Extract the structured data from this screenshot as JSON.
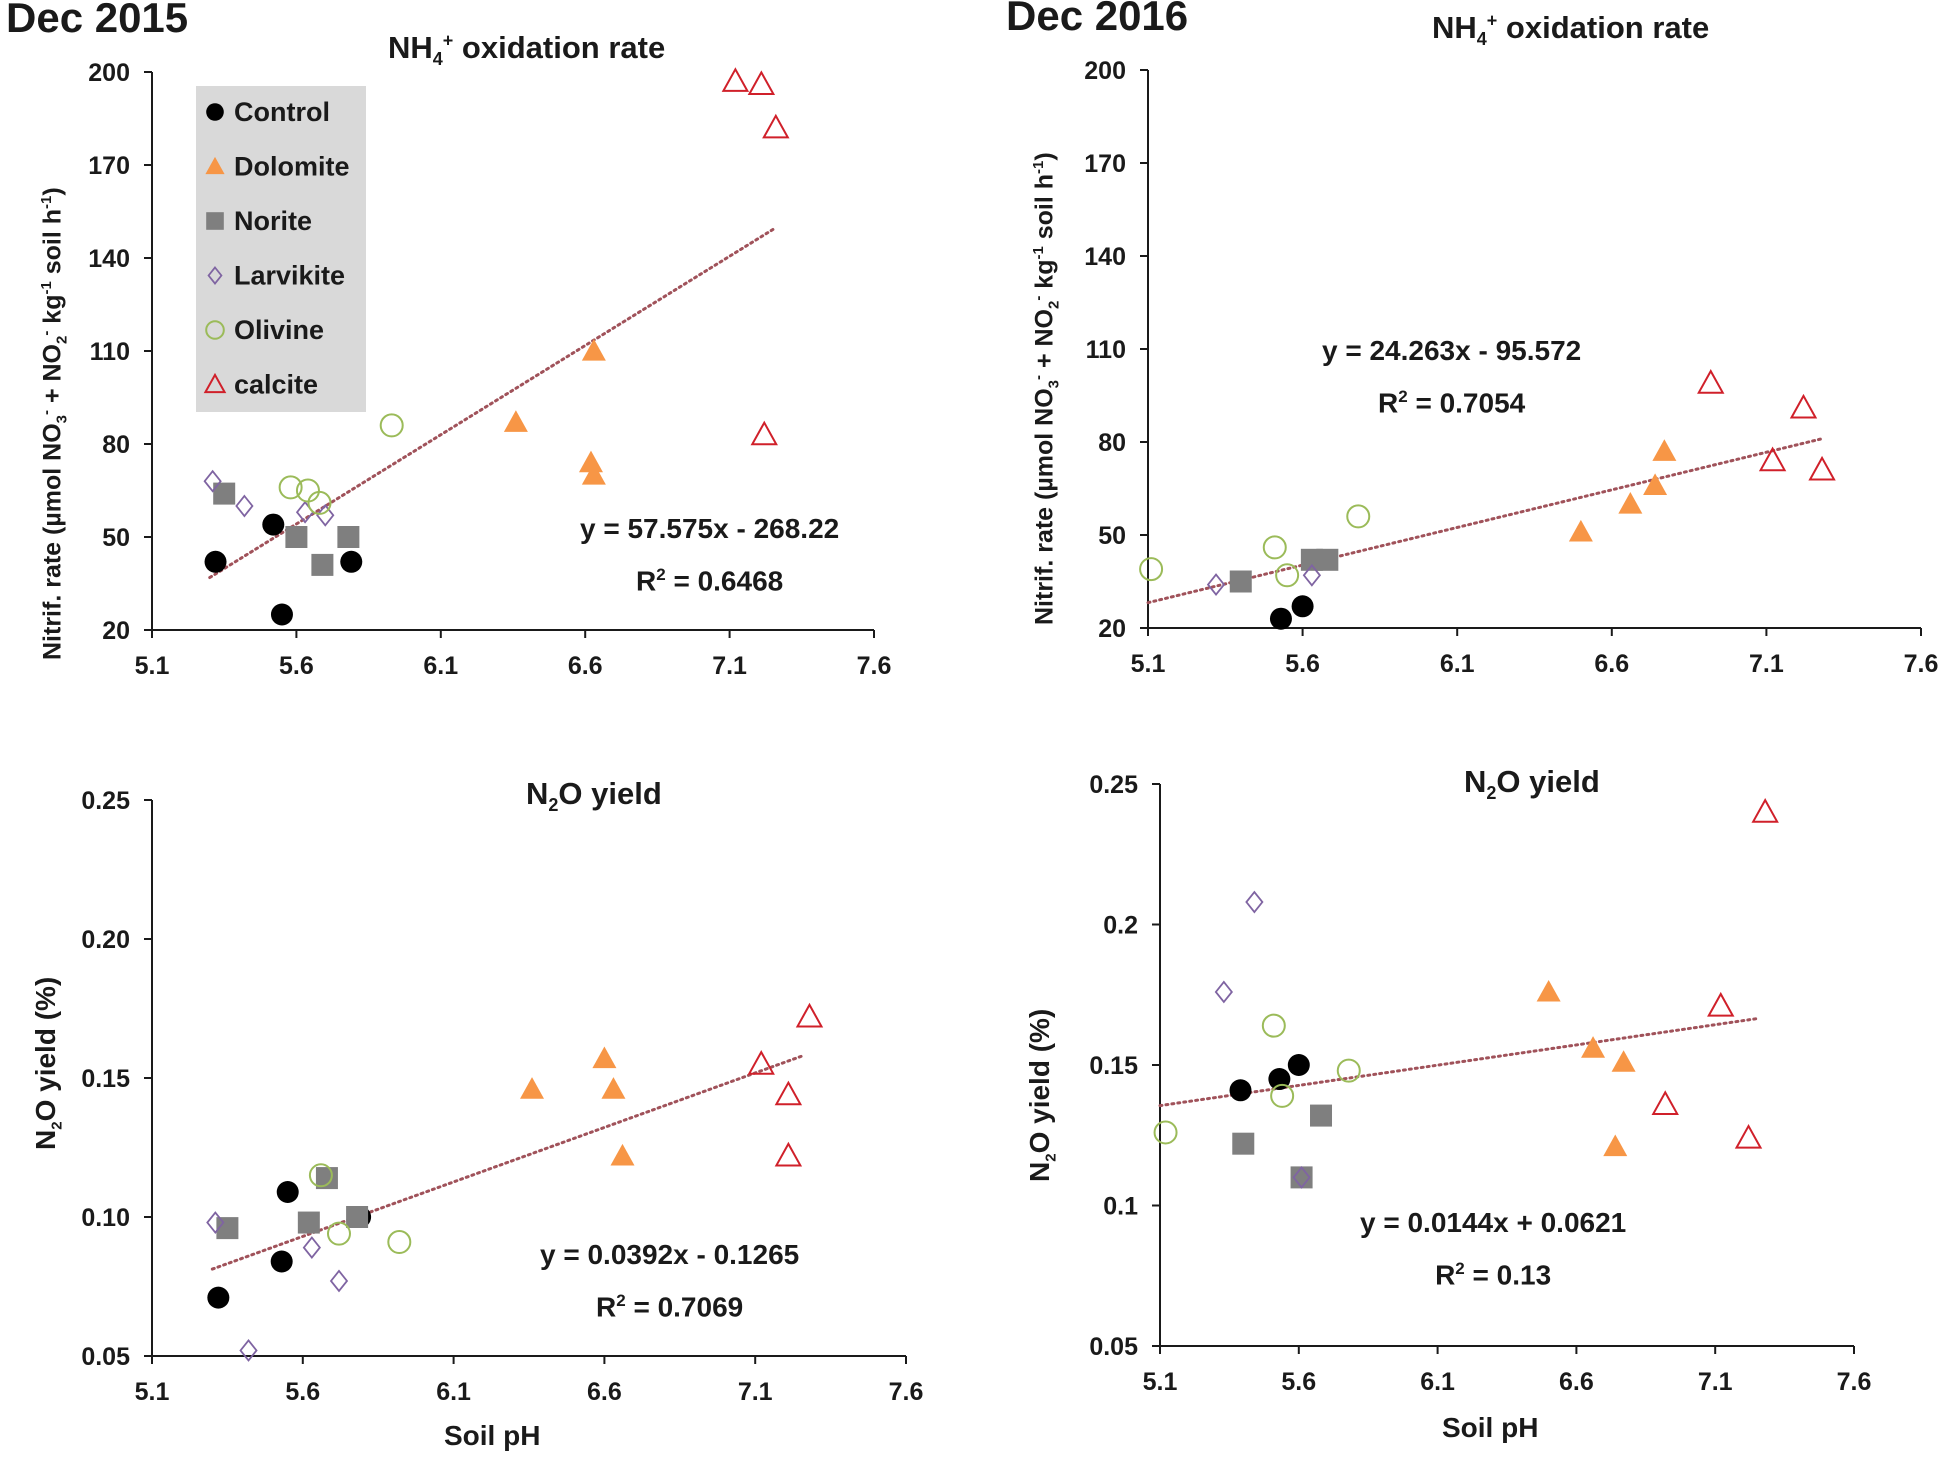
{
  "chart_data": [
    {
      "type": "scatter",
      "id": "p1",
      "panel_label": "Dec 2015",
      "title": "NH4+ oxidation rate",
      "ylabel": "Nitrif. rate (µmol NO3- + NO2- kg-1 soil h-1)",
      "xlabel": "",
      "xlim": [
        5.1,
        7.6
      ],
      "ylim": [
        20,
        200
      ],
      "xticks": [
        "5.1",
        "5.6",
        "6.1",
        "6.6",
        "7.1",
        "7.6"
      ],
      "yticks": [
        "20",
        "50",
        "80",
        "110",
        "140",
        "170",
        "200"
      ],
      "legend_position": "top-left",
      "trendline": {
        "slope": 57.575,
        "intercept": -268.22,
        "x_range": [
          5.3,
          7.26
        ]
      },
      "equation": "y = 57.575x - 268.22",
      "r2": "R² = 0.6468",
      "series": [
        {
          "name": "Control",
          "points": [
            [
              5.32,
              42
            ],
            [
              5.52,
              54
            ],
            [
              5.55,
              25
            ],
            [
              5.79,
              42
            ]
          ]
        },
        {
          "name": "Dolomite",
          "points": [
            [
              6.36,
              87
            ],
            [
              6.63,
              110
            ],
            [
              6.62,
              74
            ],
            [
              6.63,
              70
            ]
          ]
        },
        {
          "name": "Norite",
          "points": [
            [
              5.35,
              64
            ],
            [
              5.6,
              50
            ],
            [
              5.69,
              41
            ],
            [
              5.78,
              50
            ]
          ]
        },
        {
          "name": "Larvikite",
          "points": [
            [
              5.31,
              68
            ],
            [
              5.42,
              60
            ],
            [
              5.63,
              58
            ],
            [
              5.7,
              57
            ]
          ]
        },
        {
          "name": "Olivine",
          "points": [
            [
              5.58,
              66
            ],
            [
              5.64,
              65
            ],
            [
              5.68,
              61
            ],
            [
              5.93,
              86
            ]
          ]
        },
        {
          "name": "calcite",
          "points": [
            [
              7.12,
              197
            ],
            [
              7.21,
              196
            ],
            [
              7.26,
              182
            ],
            [
              7.22,
              83
            ]
          ]
        }
      ]
    },
    {
      "type": "scatter",
      "id": "p2",
      "panel_label": "Dec 2016",
      "title": "NH4+ oxidation rate",
      "ylabel": "Nitrif. rate (µmol NO3- + NO2- kg-1 soil h-1)",
      "xlabel": "",
      "xlim": [
        5.1,
        7.6
      ],
      "ylim": [
        20,
        200
      ],
      "xticks": [
        "5.1",
        "5.6",
        "6.1",
        "6.6",
        "7.1",
        "7.6"
      ],
      "yticks": [
        "20",
        "50",
        "80",
        "110",
        "140",
        "170",
        "200"
      ],
      "trendline": {
        "slope": 24.263,
        "intercept": -95.572,
        "x_range": [
          5.1,
          7.28
        ]
      },
      "equation": "y = 24.263x - 95.572",
      "r2": "R² = 0.7054",
      "series": [
        {
          "name": "Control",
          "points": [
            [
              5.53,
              23
            ],
            [
              5.6,
              27
            ]
          ]
        },
        {
          "name": "Dolomite",
          "points": [
            [
              6.5,
              51
            ],
            [
              6.66,
              60
            ],
            [
              6.74,
              66
            ],
            [
              6.77,
              77
            ]
          ]
        },
        {
          "name": "Norite",
          "points": [
            [
              5.4,
              35
            ],
            [
              5.63,
              42
            ],
            [
              5.68,
              42
            ]
          ]
        },
        {
          "name": "Larvikite",
          "points": [
            [
              5.32,
              34
            ],
            [
              5.63,
              37
            ]
          ]
        },
        {
          "name": "Olivine",
          "points": [
            [
              5.11,
              39
            ],
            [
              5.51,
              46
            ],
            [
              5.55,
              37
            ],
            [
              5.78,
              56
            ]
          ]
        },
        {
          "name": "calcite",
          "points": [
            [
              6.92,
              99
            ],
            [
              7.22,
              91
            ],
            [
              7.12,
              74
            ],
            [
              7.28,
              71
            ]
          ]
        }
      ]
    },
    {
      "type": "scatter",
      "id": "p3",
      "panel_label": "",
      "title": "N2O yield",
      "ylabel": "N2O yield (%)",
      "xlabel": "Soil pH",
      "xlim": [
        5.1,
        7.6
      ],
      "ylim": [
        0.05,
        0.25
      ],
      "xticks": [
        "5.1",
        "5.6",
        "6.1",
        "6.6",
        "7.1",
        "7.6"
      ],
      "yticks": [
        "0.05",
        "0.10",
        "0.15",
        "0.20",
        "0.25"
      ],
      "trendline": {
        "slope": 0.0392,
        "intercept": -0.1265,
        "x_range": [
          5.3,
          7.26
        ]
      },
      "equation": "y = 0.0392x - 0.1265",
      "r2": "R² = 0.7069",
      "series": [
        {
          "name": "Control",
          "points": [
            [
              5.32,
              0.071
            ],
            [
              5.55,
              0.109
            ],
            [
              5.53,
              0.084
            ],
            [
              5.79,
              0.1
            ]
          ]
        },
        {
          "name": "Dolomite",
          "points": [
            [
              6.36,
              0.146
            ],
            [
              6.6,
              0.157
            ],
            [
              6.63,
              0.146
            ],
            [
              6.66,
              0.122
            ]
          ]
        },
        {
          "name": "Norite",
          "points": [
            [
              5.35,
              0.096
            ],
            [
              5.62,
              0.098
            ],
            [
              5.68,
              0.114
            ],
            [
              5.78,
              0.1
            ]
          ]
        },
        {
          "name": "Larvikite",
          "points": [
            [
              5.31,
              0.098
            ],
            [
              5.42,
              0.052
            ],
            [
              5.63,
              0.089
            ],
            [
              5.72,
              0.077
            ]
          ]
        },
        {
          "name": "Olivine",
          "points": [
            [
              5.66,
              0.115
            ],
            [
              5.72,
              0.094
            ],
            [
              5.92,
              0.091
            ]
          ]
        },
        {
          "name": "calcite",
          "points": [
            [
              7.12,
              0.155
            ],
            [
              7.28,
              0.172
            ],
            [
              7.21,
              0.144
            ],
            [
              7.21,
              0.122
            ]
          ]
        }
      ]
    },
    {
      "type": "scatter",
      "id": "p4",
      "panel_label": "",
      "title": "N2O yield",
      "ylabel": "N2O yield (%)",
      "xlabel": "Soil pH",
      "xlim": [
        5.1,
        7.6
      ],
      "ylim": [
        0.05,
        0.25
      ],
      "xticks": [
        "5.1",
        "5.6",
        "6.1",
        "6.6",
        "7.1",
        "7.6"
      ],
      "yticks": [
        "0.05",
        "0.1",
        "0.15",
        "0.2",
        "0.25"
      ],
      "trendline": {
        "slope": 0.0144,
        "intercept": 0.0621,
        "x_range": [
          5.1,
          7.26
        ]
      },
      "equation": "y = 0.0144x + 0.0621",
      "r2": "R² = 0.13",
      "series": [
        {
          "name": "Control",
          "points": [
            [
              5.39,
              0.141
            ],
            [
              5.53,
              0.145
            ],
            [
              5.6,
              0.15
            ]
          ]
        },
        {
          "name": "Dolomite",
          "points": [
            [
              6.5,
              0.176
            ],
            [
              6.66,
              0.156
            ],
            [
              6.77,
              0.151
            ],
            [
              6.74,
              0.121
            ]
          ]
        },
        {
          "name": "Norite",
          "points": [
            [
              5.4,
              0.122
            ],
            [
              5.61,
              0.11
            ],
            [
              5.68,
              0.132
            ]
          ]
        },
        {
          "name": "Larvikite",
          "points": [
            [
              5.33,
              0.176
            ],
            [
              5.44,
              0.208
            ],
            [
              5.61,
              0.11
            ]
          ]
        },
        {
          "name": "Olivine",
          "points": [
            [
              5.12,
              0.126
            ],
            [
              5.51,
              0.164
            ],
            [
              5.54,
              0.139
            ],
            [
              5.78,
              0.148
            ]
          ]
        },
        {
          "name": "calcite",
          "points": [
            [
              7.28,
              0.24
            ],
            [
              7.12,
              0.171
            ],
            [
              6.92,
              0.136
            ],
            [
              7.22,
              0.124
            ]
          ]
        }
      ]
    }
  ],
  "legend": {
    "items": [
      {
        "name": "Control",
        "marker": "filled-circle",
        "color": "#000000"
      },
      {
        "name": "Dolomite",
        "marker": "filled-triangle",
        "color": "#f79646"
      },
      {
        "name": "Norite",
        "marker": "filled-square",
        "color": "#7f7f7f"
      },
      {
        "name": "Larvikite",
        "marker": "open-diamond",
        "color": "#7f64a2"
      },
      {
        "name": "Olivine",
        "marker": "open-circle",
        "color": "#9bbb59"
      },
      {
        "name": "calcite",
        "marker": "open-triangle",
        "color": "#d0202a"
      }
    ],
    "background": "#d9d9d9"
  },
  "styles": {
    "trendline_color": "#a0525a",
    "axis_color": "#1a1a1a"
  },
  "text": {
    "year_left": "Dec 2015",
    "year_right": "Dec 2016",
    "nh4_title_prefix": "NH",
    "nh4_title_sub": "4",
    "nh4_title_sup": "+",
    "nh4_title_suffix": " oxidation rate",
    "n2o_title_prefix": "N",
    "n2o_title_sub": "2",
    "n2o_title_suffix": "O yield",
    "nitrif_ylabel_a": "Nitrif. rate (µmol NO",
    "nitrif_ylabel_b": "3",
    "nitrif_ylabel_c": "-",
    "nitrif_ylabel_d": " + NO",
    "nitrif_ylabel_e": "2",
    "nitrif_ylabel_f": "-",
    "nitrif_ylabel_g": " kg",
    "nitrif_ylabel_h": "-1",
    "nitrif_ylabel_i": " soil h",
    "nitrif_ylabel_j": "-1",
    "nitrif_ylabel_k": ")",
    "n2o_ylabel_a": "N",
    "n2o_ylabel_b": "2",
    "n2o_ylabel_c": "O yield (%)",
    "xlabel": "Soil pH",
    "eq1": "y = 57.575x - 268.22",
    "eq2": "y = 24.263x - 95.572",
    "eq3": "y = 0.0392x - 0.1265",
    "eq4": "y = 0.0144x + 0.0621",
    "r2_label": "R",
    "r2_sup": "2",
    "r2_1": " = 0.6468",
    "r2_2": " = 0.7054",
    "r2_3": " = 0.7069",
    "r2_4": " = 0.13"
  }
}
